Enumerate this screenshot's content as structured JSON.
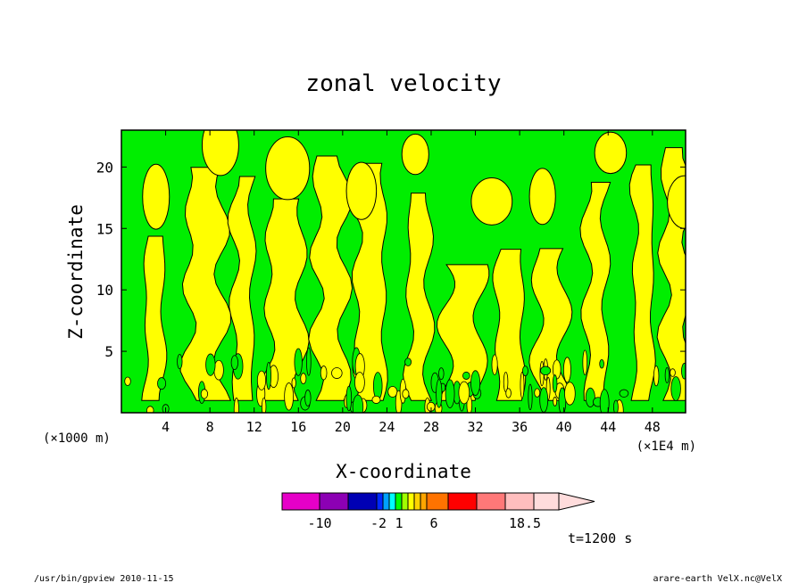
{
  "chart_data": {
    "type": "heatmap",
    "title": "zonal velocity",
    "xlabel": "X-coordinate",
    "ylabel": "Z-coordinate",
    "x_units_left": "(×1000 m)",
    "x_units_right": "(×1E4 m)",
    "x_ticks": [
      4,
      8,
      12,
      16,
      20,
      24,
      28,
      32,
      36,
      40,
      44,
      48
    ],
    "y_ticks": [
      5,
      10,
      15,
      20
    ],
    "xlim": [
      0,
      51
    ],
    "ylim": [
      0,
      23
    ],
    "grid": false,
    "fields": {
      "positive_color": "#ffff00",
      "negative_color": "#00ee00",
      "contour_color": "#000000"
    },
    "colorbar": {
      "colors": [
        "#e600c8",
        "#8c00b4",
        "#0000b4",
        "#0028ff",
        "#00a0ff",
        "#00ffff",
        "#00ff00",
        "#a0ff00",
        "#ffff00",
        "#ffd200",
        "#ffa500",
        "#ff7300",
        "#ff0000",
        "#ff7878",
        "#ffbebe",
        "#ffdcdc"
      ],
      "tick_labels": [
        "-10",
        "-2",
        "1",
        "6",
        "18.5"
      ]
    },
    "time_label": "t=1200 s"
  },
  "footer": {
    "left": "/usr/bin/gpview   2010-11-15",
    "right": "arare-earth_VelX.nc@VelX"
  }
}
